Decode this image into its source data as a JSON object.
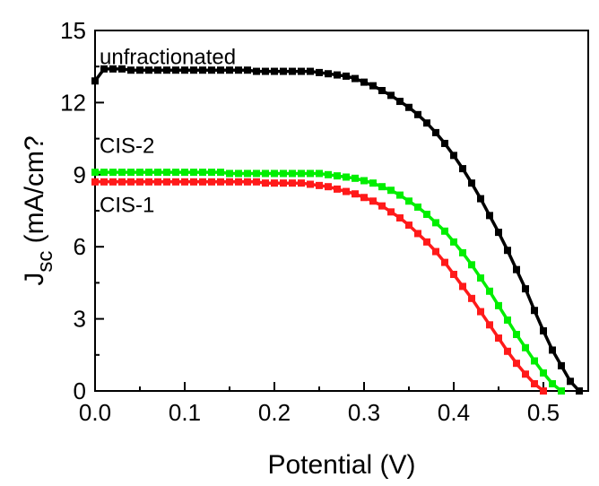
{
  "chart_data": {
    "type": "line",
    "title": "",
    "xlabel": "Potential (V)",
    "ylabel": {
      "main": "J",
      "sub": "sc",
      "unit": " (mA/cm?"
    },
    "xlim": [
      0,
      0.55
    ],
    "ylim": [
      0,
      15
    ],
    "xticks": [
      0.0,
      0.1,
      0.2,
      0.3,
      0.4,
      0.5
    ],
    "xtick_labels": [
      "0.0",
      "0.1",
      "0.2",
      "0.3",
      "0.4",
      "0.5"
    ],
    "yticks": [
      0,
      3,
      6,
      9,
      12,
      15
    ],
    "ytick_labels": [
      "0",
      "3",
      "6",
      "9",
      "12",
      "15"
    ],
    "grid": false,
    "series": [
      {
        "name": "unfractionated",
        "color": "#000000",
        "x": [
          0.0,
          0.01,
          0.02,
          0.03,
          0.04,
          0.05,
          0.06,
          0.07,
          0.08,
          0.09,
          0.1,
          0.11,
          0.12,
          0.13,
          0.14,
          0.15,
          0.16,
          0.17,
          0.18,
          0.19,
          0.2,
          0.21,
          0.22,
          0.23,
          0.24,
          0.25,
          0.26,
          0.27,
          0.28,
          0.29,
          0.3,
          0.31,
          0.32,
          0.33,
          0.34,
          0.35,
          0.36,
          0.37,
          0.38,
          0.39,
          0.4,
          0.41,
          0.42,
          0.43,
          0.44,
          0.45,
          0.46,
          0.47,
          0.48,
          0.49,
          0.5,
          0.51,
          0.52,
          0.53,
          0.54
        ],
        "y": [
          12.9,
          13.4,
          13.4,
          13.4,
          13.35,
          13.35,
          13.35,
          13.35,
          13.35,
          13.35,
          13.35,
          13.35,
          13.35,
          13.35,
          13.35,
          13.35,
          13.35,
          13.35,
          13.3,
          13.3,
          13.3,
          13.3,
          13.3,
          13.3,
          13.3,
          13.25,
          13.2,
          13.15,
          13.1,
          13.0,
          12.85,
          12.7,
          12.5,
          12.3,
          12.05,
          11.8,
          11.5,
          11.15,
          10.75,
          10.3,
          9.8,
          9.25,
          8.65,
          8.0,
          7.3,
          6.6,
          5.85,
          5.05,
          4.25,
          3.35,
          2.5,
          1.7,
          1.05,
          0.4,
          0.0
        ]
      },
      {
        "name": "CIS-2",
        "color": "#00ee00",
        "x": [
          0.0,
          0.01,
          0.02,
          0.03,
          0.04,
          0.05,
          0.06,
          0.07,
          0.08,
          0.09,
          0.1,
          0.11,
          0.12,
          0.13,
          0.14,
          0.15,
          0.16,
          0.17,
          0.18,
          0.19,
          0.2,
          0.21,
          0.22,
          0.23,
          0.24,
          0.25,
          0.26,
          0.27,
          0.28,
          0.29,
          0.3,
          0.31,
          0.32,
          0.33,
          0.34,
          0.35,
          0.36,
          0.37,
          0.38,
          0.39,
          0.4,
          0.41,
          0.42,
          0.43,
          0.44,
          0.45,
          0.46,
          0.47,
          0.48,
          0.49,
          0.5,
          0.51,
          0.52
        ],
        "y": [
          9.1,
          9.1,
          9.1,
          9.1,
          9.1,
          9.1,
          9.1,
          9.1,
          9.1,
          9.1,
          9.1,
          9.1,
          9.1,
          9.1,
          9.1,
          9.05,
          9.05,
          9.05,
          9.05,
          9.05,
          9.05,
          9.05,
          9.05,
          9.05,
          9.05,
          9.05,
          9.0,
          8.95,
          8.9,
          8.85,
          8.75,
          8.65,
          8.5,
          8.35,
          8.15,
          7.9,
          7.65,
          7.35,
          7.0,
          6.65,
          6.2,
          5.75,
          5.25,
          4.7,
          4.15,
          3.55,
          2.95,
          2.35,
          1.8,
          1.25,
          0.75,
          0.3,
          0.0
        ]
      },
      {
        "name": "CIS-1",
        "color": "#ff1a1a",
        "x": [
          0.0,
          0.01,
          0.02,
          0.03,
          0.04,
          0.05,
          0.06,
          0.07,
          0.08,
          0.09,
          0.1,
          0.11,
          0.12,
          0.13,
          0.14,
          0.15,
          0.16,
          0.17,
          0.18,
          0.19,
          0.2,
          0.21,
          0.22,
          0.23,
          0.24,
          0.25,
          0.26,
          0.27,
          0.28,
          0.29,
          0.3,
          0.31,
          0.32,
          0.33,
          0.34,
          0.35,
          0.36,
          0.37,
          0.38,
          0.39,
          0.4,
          0.41,
          0.42,
          0.43,
          0.44,
          0.45,
          0.46,
          0.47,
          0.48,
          0.49,
          0.5
        ],
        "y": [
          8.7,
          8.7,
          8.7,
          8.7,
          8.7,
          8.7,
          8.7,
          8.7,
          8.7,
          8.7,
          8.7,
          8.7,
          8.7,
          8.7,
          8.7,
          8.7,
          8.7,
          8.7,
          8.7,
          8.65,
          8.65,
          8.65,
          8.65,
          8.65,
          8.6,
          8.55,
          8.5,
          8.4,
          8.3,
          8.2,
          8.05,
          7.9,
          7.7,
          7.45,
          7.2,
          6.9,
          6.55,
          6.2,
          5.8,
          5.35,
          4.85,
          4.35,
          3.85,
          3.3,
          2.75,
          2.2,
          1.65,
          1.15,
          0.7,
          0.3,
          0.0
        ]
      }
    ],
    "annotations": [
      {
        "text": "unfractionated",
        "x": 0.005,
        "y": 13.6
      },
      {
        "text": "CIS-2",
        "x": 0.005,
        "y": 9.9
      },
      {
        "text": "CIS-1",
        "x": 0.005,
        "y": 7.45
      }
    ]
  }
}
